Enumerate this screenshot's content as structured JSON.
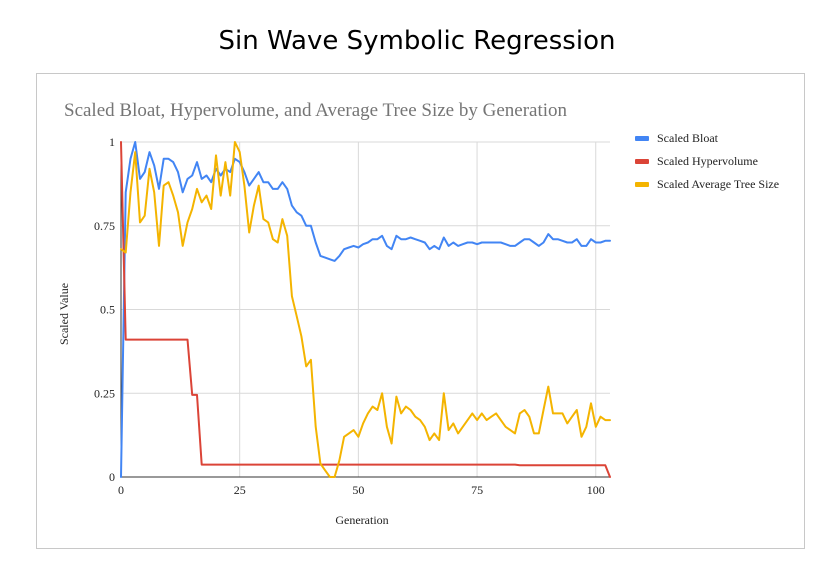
{
  "page": {
    "title": "Sin Wave Symbolic Regression"
  },
  "chart_data": {
    "type": "line",
    "title": "Scaled Bloat, Hypervolume, and Average Tree Size by Generation",
    "xlabel": "Generation",
    "ylabel": "Scaled Value",
    "xlim": [
      0,
      103
    ],
    "ylim": [
      0,
      1
    ],
    "x_ticks": [
      "0",
      "25",
      "50",
      "75",
      "100"
    ],
    "x_tick_values": [
      0,
      25,
      50,
      75,
      100
    ],
    "y_ticks": [
      "0",
      "0.25",
      "0.5",
      "0.75",
      "1"
    ],
    "y_tick_values": [
      0,
      0.25,
      0.5,
      0.75,
      1
    ],
    "grid": true,
    "legend_position": "right",
    "series": [
      {
        "name": "Scaled Bloat",
        "color": "#4285f4",
        "x": [
          0,
          1,
          2,
          3,
          4,
          5,
          6,
          7,
          8,
          9,
          10,
          11,
          12,
          13,
          14,
          15,
          16,
          17,
          18,
          19,
          20,
          21,
          22,
          23,
          24,
          25,
          26,
          27,
          28,
          29,
          30,
          31,
          32,
          33,
          34,
          35,
          36,
          37,
          38,
          39,
          40,
          41,
          42,
          43,
          44,
          45,
          46,
          47,
          48,
          49,
          50,
          51,
          52,
          53,
          54,
          55,
          56,
          57,
          58,
          59,
          60,
          61,
          62,
          63,
          64,
          65,
          66,
          67,
          68,
          69,
          70,
          71,
          72,
          73,
          74,
          75,
          76,
          77,
          78,
          79,
          80,
          81,
          82,
          83,
          84,
          85,
          86,
          87,
          88,
          89,
          90,
          91,
          92,
          93,
          94,
          95,
          96,
          97,
          98,
          99,
          100,
          101,
          102,
          103
        ],
        "values": [
          0,
          0.85,
          0.95,
          1.0,
          0.89,
          0.91,
          0.97,
          0.93,
          0.86,
          0.95,
          0.95,
          0.94,
          0.91,
          0.85,
          0.89,
          0.9,
          0.94,
          0.89,
          0.9,
          0.88,
          0.92,
          0.9,
          0.92,
          0.91,
          0.95,
          0.94,
          0.91,
          0.87,
          0.89,
          0.91,
          0.88,
          0.88,
          0.86,
          0.86,
          0.88,
          0.86,
          0.81,
          0.79,
          0.78,
          0.75,
          0.75,
          0.7,
          0.66,
          0.655,
          0.65,
          0.645,
          0.66,
          0.68,
          0.685,
          0.69,
          0.685,
          0.695,
          0.7,
          0.71,
          0.71,
          0.72,
          0.69,
          0.68,
          0.72,
          0.71,
          0.71,
          0.715,
          0.71,
          0.705,
          0.7,
          0.68,
          0.69,
          0.68,
          0.715,
          0.69,
          0.7,
          0.69,
          0.695,
          0.7,
          0.7,
          0.695,
          0.7,
          0.7,
          0.7,
          0.7,
          0.7,
          0.695,
          0.69,
          0.69,
          0.7,
          0.71,
          0.71,
          0.7,
          0.69,
          0.7,
          0.725,
          0.71,
          0.71,
          0.705,
          0.7,
          0.7,
          0.71,
          0.69,
          0.69,
          0.71,
          0.7,
          0.7,
          0.705,
          0.705
        ]
      },
      {
        "name": "Scaled Hypervolume",
        "color": "#db4437",
        "x": [
          0,
          1,
          14,
          15,
          16,
          17,
          83,
          84,
          102,
          103
        ],
        "values": [
          1.0,
          0.41,
          0.41,
          0.245,
          0.245,
          0.037,
          0.037,
          0.035,
          0.035,
          0.0
        ]
      },
      {
        "name": "Scaled Average Tree Size",
        "color": "#f4b400",
        "x": [
          0,
          1,
          2,
          3,
          4,
          5,
          6,
          7,
          8,
          9,
          10,
          11,
          12,
          13,
          14,
          15,
          16,
          17,
          18,
          19,
          20,
          21,
          22,
          23,
          24,
          25,
          26,
          27,
          28,
          29,
          30,
          31,
          32,
          33,
          34,
          35,
          36,
          37,
          38,
          39,
          40,
          41,
          42,
          43,
          44,
          45,
          46,
          47,
          48,
          49,
          50,
          51,
          52,
          53,
          54,
          55,
          56,
          57,
          58,
          59,
          60,
          61,
          62,
          63,
          64,
          65,
          66,
          67,
          68,
          69,
          70,
          71,
          72,
          73,
          74,
          75,
          76,
          77,
          78,
          79,
          80,
          81,
          82,
          83,
          84,
          85,
          86,
          87,
          88,
          89,
          90,
          91,
          92,
          93,
          94,
          95,
          96,
          97,
          98,
          99,
          100,
          101,
          102,
          103
        ],
        "values": [
          0.68,
          0.67,
          0.85,
          0.97,
          0.76,
          0.78,
          0.92,
          0.85,
          0.69,
          0.87,
          0.88,
          0.84,
          0.79,
          0.69,
          0.76,
          0.8,
          0.86,
          0.82,
          0.84,
          0.8,
          0.96,
          0.84,
          0.94,
          0.84,
          1.0,
          0.97,
          0.87,
          0.73,
          0.81,
          0.87,
          0.77,
          0.76,
          0.71,
          0.7,
          0.77,
          0.72,
          0.54,
          0.48,
          0.42,
          0.33,
          0.35,
          0.15,
          0.04,
          0.02,
          0.0,
          0.0,
          0.05,
          0.12,
          0.13,
          0.14,
          0.12,
          0.16,
          0.19,
          0.21,
          0.2,
          0.25,
          0.15,
          0.1,
          0.24,
          0.19,
          0.21,
          0.2,
          0.18,
          0.17,
          0.15,
          0.11,
          0.13,
          0.11,
          0.25,
          0.14,
          0.16,
          0.13,
          0.15,
          0.17,
          0.19,
          0.17,
          0.19,
          0.17,
          0.18,
          0.19,
          0.17,
          0.15,
          0.14,
          0.13,
          0.19,
          0.2,
          0.18,
          0.13,
          0.13,
          0.2,
          0.27,
          0.19,
          0.19,
          0.19,
          0.16,
          0.18,
          0.2,
          0.12,
          0.15,
          0.22,
          0.15,
          0.18,
          0.17,
          0.17
        ]
      }
    ]
  }
}
